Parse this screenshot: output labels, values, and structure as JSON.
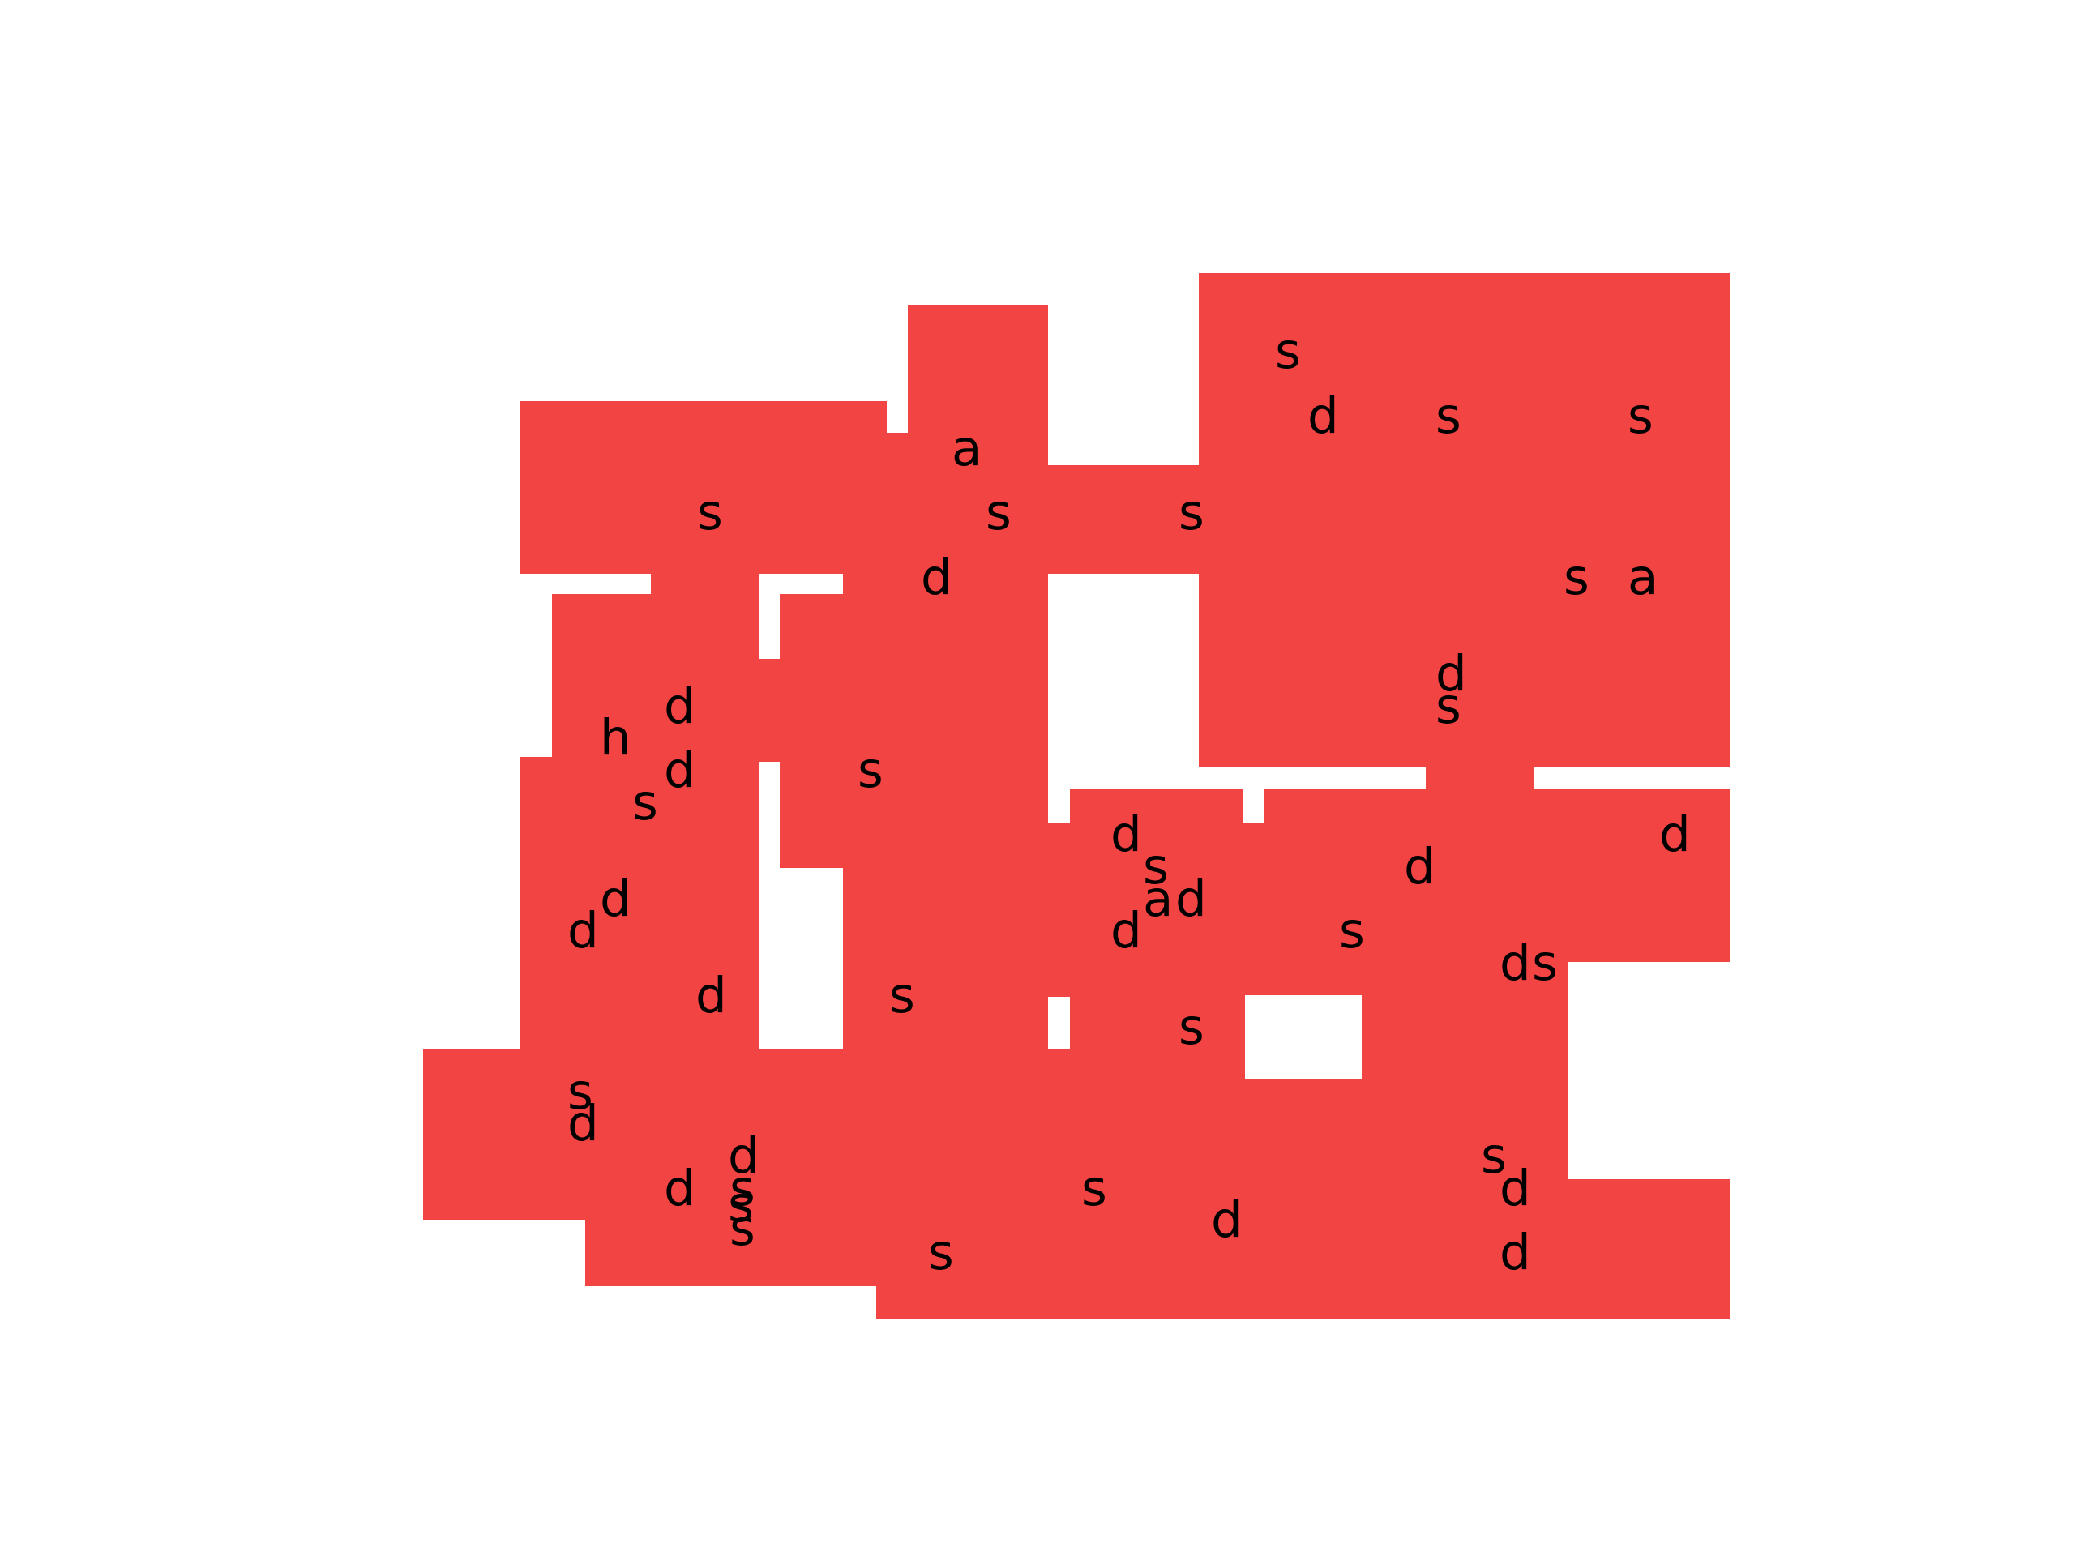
{
  "map": {
    "fill_color": "#f34444",
    "background_color": "#ffffff",
    "text_color": "#000000",
    "labels": [
      "a",
      "s",
      "s",
      "s",
      "d",
      "s",
      "d",
      "s",
      "s",
      "a",
      "s",
      "s",
      "d",
      "s",
      "h",
      "d",
      "d",
      "s",
      "s",
      "d",
      "s",
      "a",
      "d",
      "d",
      "d",
      "d",
      "s",
      "d",
      "s",
      "d",
      "s",
      "s",
      "d",
      "d",
      "d",
      "s",
      "s",
      "s",
      "d",
      "d",
      "s",
      "d",
      "d",
      "s",
      "d",
      "s"
    ]
  }
}
